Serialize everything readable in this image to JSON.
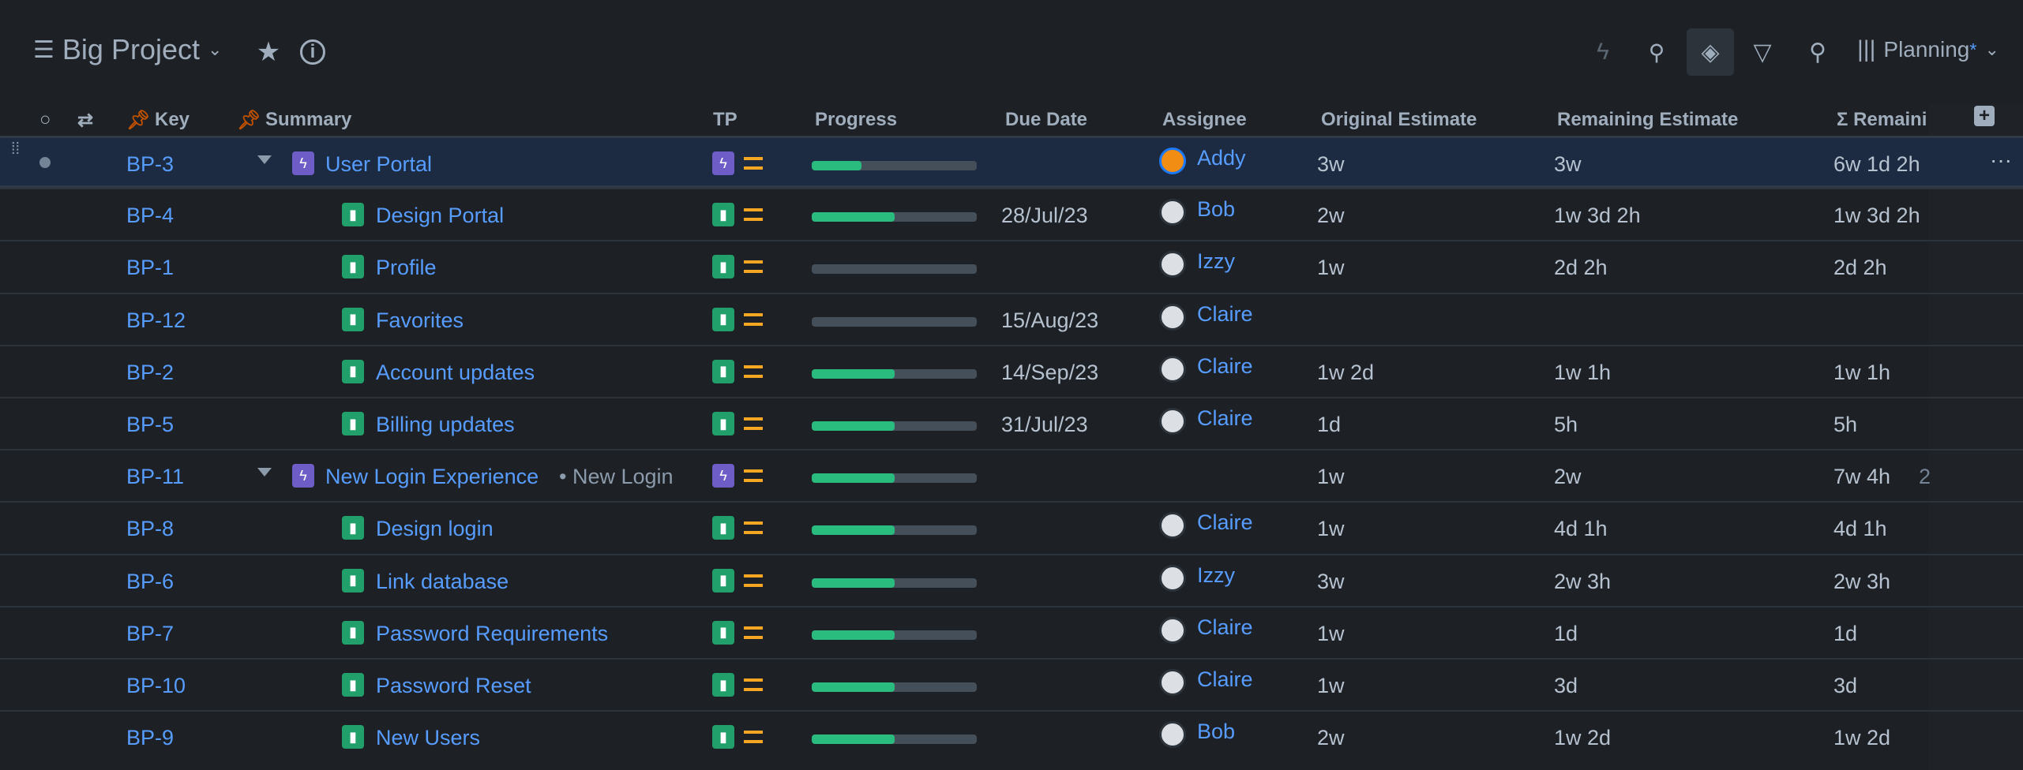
{
  "header": {
    "title": "Big Project",
    "view": "Planning",
    "view_modified": "*"
  },
  "colors": {
    "link": "#579dff",
    "epic": "#6e5dc6",
    "story": "#22a06b",
    "priority_medium": "#f5a623",
    "progress": "#2abb7f"
  },
  "columns": [
    "Key",
    "Summary",
    "TP",
    "Progress",
    "Due Date",
    "Assignee",
    "Original Estimate",
    "Remaining Estimate",
    "Σ Remaini"
  ],
  "rows": [
    {
      "key": "BP-3",
      "type": "epic",
      "summary": "User Portal",
      "progress": 0.3,
      "due": "",
      "assignee": "Addy",
      "orig": "3w",
      "rem": "3w",
      "sum_rem": "6w 1d 2h",
      "selected": true
    },
    {
      "key": "BP-4",
      "type": "story",
      "summary": "Design Portal",
      "progress": 0.5,
      "due": "28/Jul/23",
      "assignee": "Bob",
      "orig": "2w",
      "rem": "1w 3d 2h",
      "sum_rem": "1w 3d 2h"
    },
    {
      "key": "BP-1",
      "type": "story",
      "summary": "Profile",
      "progress": 0,
      "due": "",
      "assignee": "Izzy",
      "orig": "1w",
      "rem": "2d 2h",
      "sum_rem": "2d 2h"
    },
    {
      "key": "BP-12",
      "type": "story",
      "summary": "Favorites",
      "progress": 0,
      "due": "15/Aug/23",
      "assignee": "Claire",
      "orig": "",
      "rem": "",
      "sum_rem": ""
    },
    {
      "key": "BP-2",
      "type": "story",
      "summary": "Account updates",
      "progress": 0.5,
      "due": "14/Sep/23",
      "assignee": "Claire",
      "orig": "1w 2d",
      "rem": "1w 1h",
      "sum_rem": "1w 1h"
    },
    {
      "key": "BP-5",
      "type": "story",
      "summary": "Billing updates",
      "progress": 0.5,
      "due": "31/Jul/23",
      "assignee": "Claire",
      "orig": "1d",
      "rem": "5h",
      "sum_rem": "5h"
    },
    {
      "key": "BP-11",
      "type": "epic",
      "summary": "New Login Experience",
      "summary_extra": "• New Login",
      "progress": 0.5,
      "due": "",
      "assignee": "",
      "orig": "1w",
      "rem": "2w",
      "sum_rem": "7w 4h",
      "sum_extra": "2"
    },
    {
      "key": "BP-8",
      "type": "story",
      "summary": "Design login",
      "progress": 0.5,
      "due": "",
      "assignee": "Claire",
      "orig": "1w",
      "rem": "4d 1h",
      "sum_rem": "4d 1h"
    },
    {
      "key": "BP-6",
      "type": "story",
      "summary": "Link database",
      "progress": 0.5,
      "due": "",
      "assignee": "Izzy",
      "orig": "3w",
      "rem": "2w 3h",
      "sum_rem": "2w 3h"
    },
    {
      "key": "BP-7",
      "type": "story",
      "summary": "Password Requirements",
      "progress": 0.5,
      "due": "",
      "assignee": "Claire",
      "orig": "1w",
      "rem": "1d",
      "sum_rem": "1d"
    },
    {
      "key": "BP-10",
      "type": "story",
      "summary": "Password Reset",
      "progress": 0.5,
      "due": "",
      "assignee": "Claire",
      "orig": "1w",
      "rem": "3d",
      "sum_rem": "3d"
    },
    {
      "key": "BP-9",
      "type": "story",
      "summary": "New Users",
      "progress": 0.5,
      "due": "",
      "assignee": "Bob",
      "orig": "2w",
      "rem": "1w 2d",
      "sum_rem": "1w 2d"
    }
  ]
}
